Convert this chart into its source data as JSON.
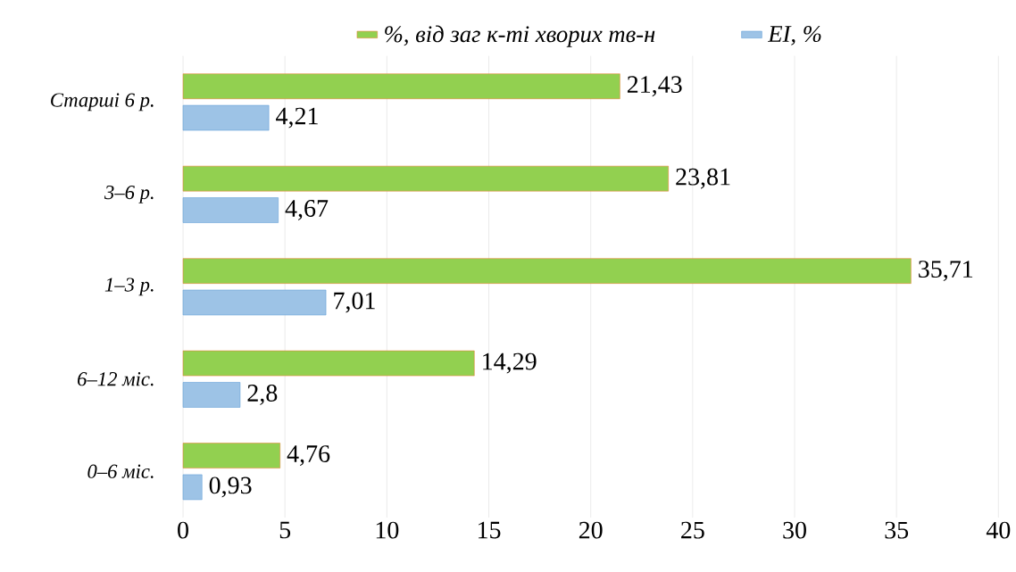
{
  "chart_data": {
    "type": "bar",
    "orientation": "horizontal",
    "categories": [
      "Старші 6 р.",
      "3–6 р.",
      "1–3 р.",
      "6–12 міс.",
      "0–6 міс."
    ],
    "series": [
      {
        "name": "%, від заг к-ті хворих тв-н",
        "color": "#92d050",
        "values": [
          21.43,
          23.81,
          35.71,
          14.29,
          4.76
        ],
        "value_labels": [
          "21,43",
          "23,81",
          "35,71",
          "14,29",
          "4,76"
        ]
      },
      {
        "name": "EI, %",
        "color": "#9dc3e6",
        "values": [
          4.21,
          4.67,
          7.01,
          2.8,
          0.93
        ],
        "value_labels": [
          "4,21",
          "4,67",
          "7,01",
          "2,8",
          "0,93"
        ]
      }
    ],
    "xlim": [
      0,
      40
    ],
    "xticks": [
      0,
      5,
      10,
      15,
      20,
      25,
      30,
      35,
      40
    ],
    "grid": "x",
    "legend": "top"
  }
}
